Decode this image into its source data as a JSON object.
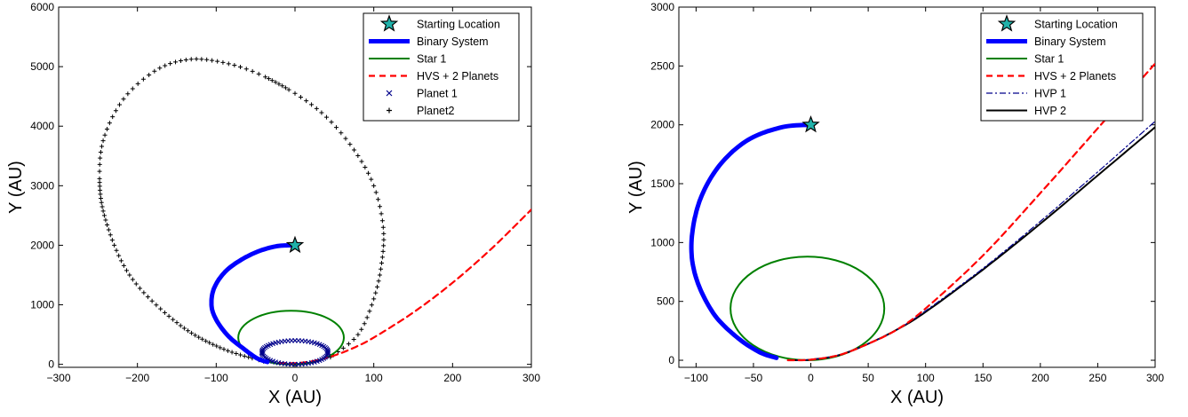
{
  "chart_data": [
    {
      "type": "line",
      "xlabel": "X (AU)",
      "ylabel": "Y (AU)",
      "xlim": [
        -300,
        300
      ],
      "ylim": [
        -50,
        6000
      ],
      "xticks": [
        -300,
        -200,
        -100,
        0,
        100,
        200,
        300
      ],
      "yticks": [
        0,
        1000,
        2000,
        3000,
        4000,
        5000,
        6000
      ],
      "grid": false,
      "legend_position": "top-right",
      "legend": [
        {
          "label": "Starting Location",
          "style": "star",
          "color": "#000000"
        },
        {
          "label": "Binary System",
          "style": "thick-line",
          "color": "#0000ff"
        },
        {
          "label": "Star 1",
          "style": "line",
          "color": "#008000"
        },
        {
          "label": "HVS + 2 Planets",
          "style": "dashed",
          "color": "#ff0000"
        },
        {
          "label": "Planet 1",
          "style": "x-marker",
          "color": "#00008b"
        },
        {
          "label": "Planet2",
          "style": "plus-marker",
          "color": "#000000"
        }
      ],
      "series": [
        {
          "name": "Starting Location",
          "points": [
            [
              0,
              2000
            ]
          ]
        },
        {
          "name": "Binary System",
          "points": [
            [
              0,
              2000
            ],
            [
              -25,
              1980
            ],
            [
              -55,
              1850
            ],
            [
              -85,
              1600
            ],
            [
              -102,
              1300
            ],
            [
              -106,
              1000
            ],
            [
              -100,
              750
            ],
            [
              -85,
              480
            ],
            [
              -65,
              260
            ],
            [
              -48,
              100
            ],
            [
              -35,
              40
            ]
          ]
        },
        {
          "name": "Star 1",
          "ellipse": {
            "cx": -5,
            "cy": 450,
            "rx": 67,
            "ry": 450
          }
        },
        {
          "name": "HVS + 2 Planets",
          "points": [
            [
              -20,
              25
            ],
            [
              0,
              20
            ],
            [
              25,
              60
            ],
            [
              50,
              150
            ],
            [
              75,
              280
            ],
            [
              100,
              450
            ],
            [
              150,
              870
            ],
            [
              200,
              1370
            ],
            [
              250,
              1950
            ],
            [
              300,
              2600
            ]
          ]
        },
        {
          "name": "Planet 1",
          "ellipse": {
            "cx": 0,
            "cy": 200,
            "rx": 42,
            "ry": 200
          }
        },
        {
          "name": "Planet2",
          "points": [
            [
              -40,
              50
            ],
            [
              -95,
              280
            ],
            [
              -150,
              700
            ],
            [
              -210,
              1500
            ],
            [
              -242,
              2500
            ],
            [
              -248,
              3300
            ],
            [
              -240,
              3900
            ],
            [
              -215,
              4500
            ],
            [
              -175,
              4950
            ],
            [
              -135,
              5120
            ],
            [
              -95,
              5080
            ],
            [
              -50,
              4900
            ],
            [
              0,
              4550
            ],
            [
              40,
              4150
            ],
            [
              75,
              3600
            ],
            [
              100,
              3000
            ],
            [
              112,
              2300
            ],
            [
              110,
              1700
            ],
            [
              100,
              1100
            ],
            [
              80,
              500
            ],
            [
              45,
              120
            ]
          ]
        }
      ]
    },
    {
      "type": "line",
      "xlabel": "X (AU)",
      "ylabel": "Y (AU)",
      "xlim": [
        -115,
        300
      ],
      "ylim": [
        -60,
        3000
      ],
      "xticks": [
        -100,
        -50,
        0,
        50,
        100,
        150,
        200,
        250,
        300
      ],
      "yticks": [
        0,
        500,
        1000,
        1500,
        2000,
        2500,
        3000
      ],
      "grid": false,
      "legend_position": "top-right",
      "legend": [
        {
          "label": "Starting Location",
          "style": "star",
          "color": "#000000"
        },
        {
          "label": "Binary System",
          "style": "thick-line",
          "color": "#0000ff"
        },
        {
          "label": "Star 1",
          "style": "line",
          "color": "#008000"
        },
        {
          "label": "HVS + 2 Planets",
          "style": "dashed",
          "color": "#ff0000"
        },
        {
          "label": "HVP 1",
          "style": "dashdot",
          "color": "#00008b"
        },
        {
          "label": "HVP 2",
          "style": "line",
          "color": "#000000"
        }
      ],
      "series": [
        {
          "name": "Starting Location",
          "points": [
            [
              0,
              2000
            ]
          ]
        },
        {
          "name": "Binary System",
          "points": [
            [
              0,
              2000
            ],
            [
              -25,
              1980
            ],
            [
              -55,
              1870
            ],
            [
              -80,
              1650
            ],
            [
              -97,
              1350
            ],
            [
              -104,
              1000
            ],
            [
              -100,
              700
            ],
            [
              -85,
              400
            ],
            [
              -65,
              200
            ],
            [
              -45,
              70
            ],
            [
              -30,
              20
            ]
          ]
        },
        {
          "name": "Star 1",
          "ellipse": {
            "cx": -3,
            "cy": 440,
            "rx": 67,
            "ry": 440
          }
        },
        {
          "name": "HVS + 2 Planets",
          "points": [
            [
              -20,
              0
            ],
            [
              0,
              5
            ],
            [
              25,
              45
            ],
            [
              50,
              140
            ],
            [
              75,
              260
            ],
            [
              100,
              440
            ],
            [
              150,
              890
            ],
            [
              200,
              1420
            ],
            [
              250,
              1970
            ],
            [
              300,
              2520
            ]
          ]
        },
        {
          "name": "HVP 1",
          "points": [
            [
              -20,
              0
            ],
            [
              0,
              5
            ],
            [
              25,
              45
            ],
            [
              50,
              140
            ],
            [
              75,
              260
            ],
            [
              100,
              420
            ],
            [
              150,
              780
            ],
            [
              200,
              1180
            ],
            [
              250,
              1600
            ],
            [
              300,
              2030
            ]
          ]
        },
        {
          "name": "HVP 2",
          "points": [
            [
              -20,
              0
            ],
            [
              0,
              5
            ],
            [
              25,
              45
            ],
            [
              50,
              140
            ],
            [
              75,
              260
            ],
            [
              100,
              410
            ],
            [
              150,
              770
            ],
            [
              200,
              1160
            ],
            [
              250,
              1570
            ],
            [
              300,
              1980
            ]
          ]
        }
      ]
    }
  ]
}
